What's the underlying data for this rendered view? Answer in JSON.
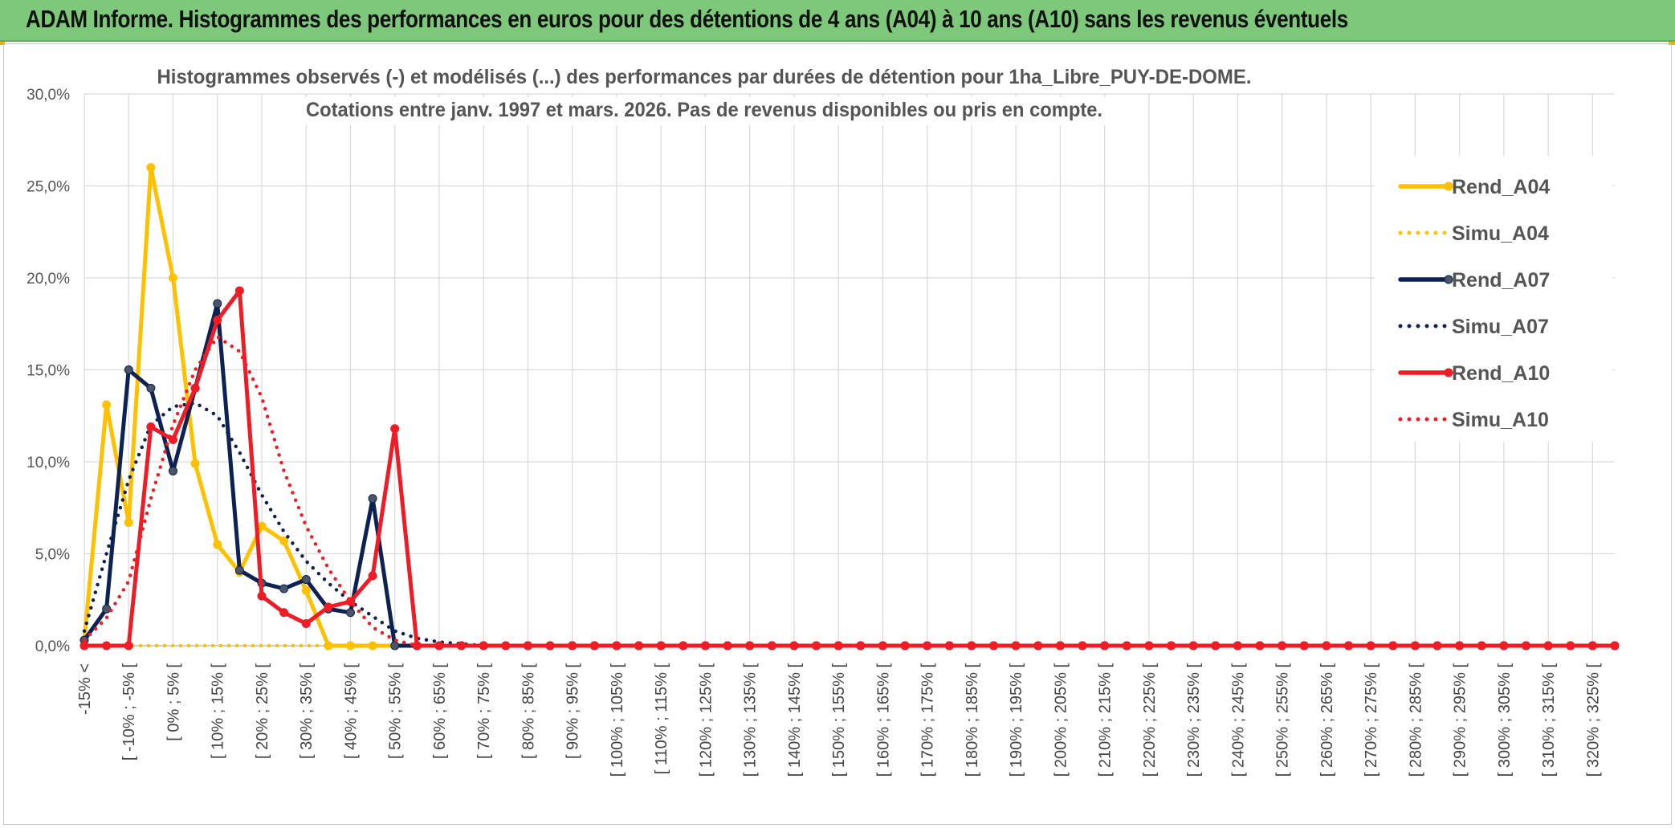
{
  "header": {
    "title": "ADAM Informe. Histogrammes des performances en euros pour des détentions de 4 ans (A04) à 10 ans (A10) sans les revenus éventuels"
  },
  "colors": {
    "banner": "#7dc87a",
    "A04": "#ffc000",
    "A07": "#0d2252",
    "A07_marker": "#4b5566",
    "A10": "#ee1c24",
    "grid": "#d9d9d9"
  },
  "chart_data": {
    "type": "line",
    "title_lines": [
      "Histogrammes observés (-) et modélisés (...) des performances par durées de détention pour 1ha_Libre_PUY-DE-DOME.",
      "Cotations entre janv. 1997 et mars. 2026. Pas de revenus disponibles ou pris en compte."
    ],
    "ylim": [
      0,
      30
    ],
    "y_ticks": [
      "0,0%",
      "5,0%",
      "10,0%",
      "15,0%",
      "20,0%",
      "25,0%",
      "30,0%"
    ],
    "x_labels": [
      "-15% <",
      "[ -10% ; -5% [",
      "[ 0% ; 5% [",
      "[ 10% ; 15% [",
      "[ 20% ; 25% [",
      "[ 30% ; 35% [",
      "[ 40% ; 45% [",
      "[ 50% ; 55% [",
      "[ 60% ; 65% [",
      "[ 70% ; 75% [",
      "[ 80% ; 85% [",
      "[ 90% ; 95% [",
      "[ 100% ; 105% [",
      "[ 110% ; 115% [",
      "[ 120% ; 125% [",
      "[ 130% ; 135% [",
      "[ 140% ; 145% [",
      "[ 150% ; 155% [",
      "[ 160% ; 165% [",
      "[ 170% ; 175% [",
      "[ 180% ; 185% [",
      "[ 190% ; 195% [",
      "[ 200% ; 205% [",
      "[ 210% ; 215% [",
      "[ 220% ; 225% [",
      "[ 230% ; 235% [",
      "[ 240% ; 245% [",
      "[ 250% ; 255% [",
      "[ 260% ; 265% [",
      "[ 270% ; 275% [",
      "[ 280% ; 285% [",
      "[ 290% ; 295% [",
      "[ 300% ; 305% [",
      "[ 310% ; 315% [",
      "[ 320% ; 325% ["
    ],
    "n_bins": 70,
    "grid": true,
    "legend_position": "right",
    "series": [
      {
        "name": "Rend_A04",
        "color": "#ffc000",
        "style": "solid",
        "marker": "circle",
        "values": [
          0.3,
          13.1,
          6.7,
          26.0,
          20.0,
          9.9,
          5.5,
          4.0,
          6.5,
          5.7,
          3.0,
          0,
          0,
          0
        ]
      },
      {
        "name": "Simu_A04",
        "color": "#ffc000",
        "style": "dotted",
        "marker": "none",
        "values": [
          0,
          0,
          0,
          0,
          0,
          0,
          0,
          0,
          0,
          0,
          0,
          0,
          0,
          0,
          0
        ]
      },
      {
        "name": "Rend_A07",
        "color": "#0d2252",
        "style": "solid",
        "marker": "circle",
        "values": [
          0.3,
          2.0,
          15.0,
          14.0,
          9.5,
          14.0,
          18.6,
          4.1,
          3.4,
          3.1,
          3.6,
          2.0,
          1.8,
          8.0,
          0
        ]
      },
      {
        "name": "Simu_A07",
        "color": "#0d2252",
        "style": "dotted",
        "marker": "none",
        "values": [
          0.8,
          5.0,
          9.0,
          12.0,
          13.0,
          13.2,
          12.5,
          10.5,
          8.2,
          6.2,
          4.6,
          3.4,
          2.4,
          1.6,
          0.8,
          0.4,
          0.2,
          0.1,
          0
        ]
      },
      {
        "name": "Rend_A10",
        "color": "#ee1c24",
        "style": "solid",
        "marker": "circle",
        "values": [
          0,
          0,
          0,
          11.9,
          11.2,
          14.0,
          17.7,
          19.3,
          2.7,
          1.8,
          1.2,
          2.1,
          2.4,
          3.8,
          11.8,
          0
        ]
      },
      {
        "name": "Simu_A10",
        "color": "#ee1c24",
        "style": "dotted",
        "marker": "none",
        "values": [
          0.3,
          1.5,
          3.5,
          8.0,
          12.0,
          15.0,
          16.8,
          16.0,
          13.5,
          9.5,
          6.5,
          4.2,
          2.4,
          1.0,
          0.3,
          0
        ]
      }
    ]
  }
}
